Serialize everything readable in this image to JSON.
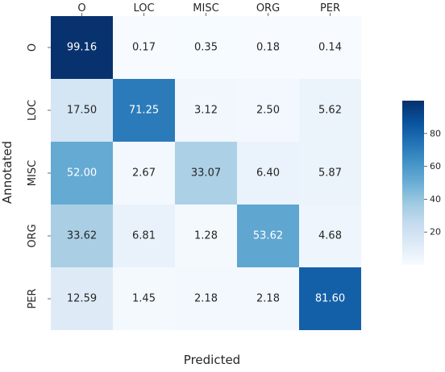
{
  "chart_data": {
    "type": "heatmap",
    "title": "",
    "xlabel": "Predicted",
    "ylabel": "Annotated",
    "x_categories": [
      "O",
      "LOC",
      "MISC",
      "ORG",
      "PER"
    ],
    "y_categories": [
      "O",
      "LOC",
      "MISC",
      "ORG",
      "PER"
    ],
    "values": [
      [
        99.16,
        0.17,
        0.35,
        0.18,
        0.14
      ],
      [
        17.5,
        71.25,
        3.12,
        2.5,
        5.62
      ],
      [
        52.0,
        2.67,
        33.07,
        6.4,
        5.87
      ],
      [
        33.62,
        6.81,
        1.28,
        53.62,
        4.68
      ],
      [
        12.59,
        1.45,
        2.18,
        2.18,
        81.6
      ]
    ],
    "value_labels": [
      [
        "99.16",
        "0.17",
        "0.35",
        "0.18",
        "0.14"
      ],
      [
        "17.50",
        "71.25",
        "3.12",
        "2.50",
        "5.62"
      ],
      [
        "52.00",
        "2.67",
        "33.07",
        "6.40",
        "5.87"
      ],
      [
        "33.62",
        "6.81",
        "1.28",
        "53.62",
        "4.68"
      ],
      [
        "12.59",
        "1.45",
        "2.18",
        "2.18",
        "81.60"
      ]
    ],
    "x_axis_position": "top",
    "colormap": "Blues",
    "color_range": [
      0,
      100
    ],
    "colorbar": {
      "range": [
        0,
        100
      ],
      "ticks": [
        20,
        40,
        60,
        80
      ],
      "tick_labels": [
        "20",
        "40",
        "60",
        "80"
      ]
    },
    "grid": false
  }
}
